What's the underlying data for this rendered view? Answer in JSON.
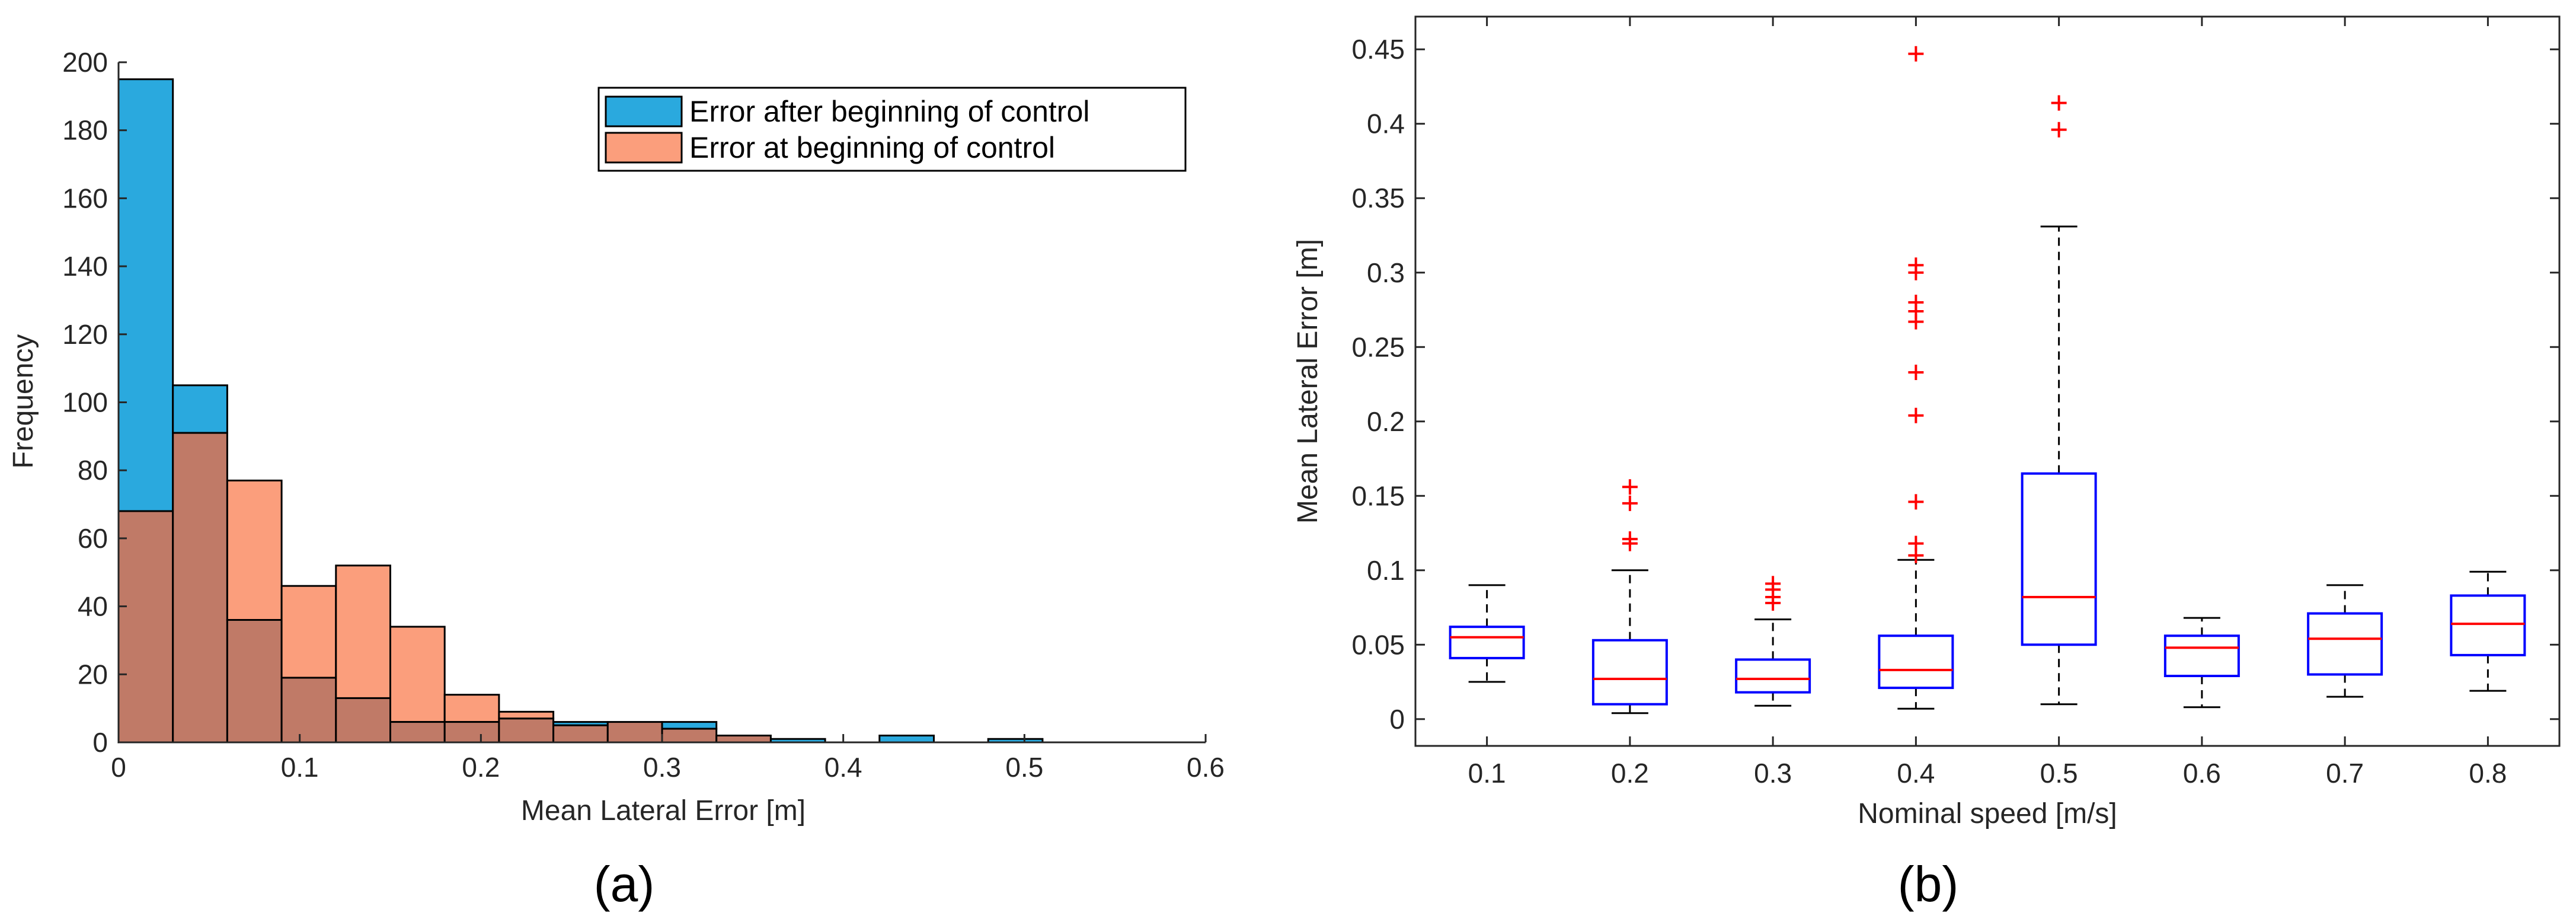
{
  "chart_data": [
    {
      "type": "histogram",
      "caption": "(a)",
      "xlabel": "Mean Lateral Error [m]",
      "ylabel": "Frequency",
      "xlim": [
        0,
        0.6
      ],
      "ylim": [
        0,
        200
      ],
      "xticks": [
        "0",
        "0.1",
        "0.2",
        "0.3",
        "0.4",
        "0.5",
        "0.6"
      ],
      "yticks": [
        "0",
        "20",
        "40",
        "60",
        "80",
        "100",
        "120",
        "140",
        "160",
        "180",
        "200"
      ],
      "bin_width": 0.03,
      "series": [
        {
          "name": "Error after beginning of control",
          "color": "#2aa9de",
          "bins": [
            [
              0,
              195
            ],
            [
              0.03,
              105
            ],
            [
              0.06,
              36
            ],
            [
              0.09,
              19
            ],
            [
              0.12,
              13
            ],
            [
              0.15,
              6
            ],
            [
              0.18,
              6
            ],
            [
              0.21,
              7
            ],
            [
              0.24,
              6
            ],
            [
              0.27,
              6
            ],
            [
              0.3,
              6
            ],
            [
              0.33,
              2
            ],
            [
              0.36,
              1
            ],
            [
              0.42,
              2
            ],
            [
              0.48,
              1
            ]
          ]
        },
        {
          "name": "Error at beginning of control",
          "color": "#fb9e7c",
          "bins": [
            [
              0,
              68
            ],
            [
              0.03,
              91
            ],
            [
              0.06,
              77
            ],
            [
              0.09,
              46
            ],
            [
              0.12,
              52
            ],
            [
              0.15,
              34
            ],
            [
              0.18,
              14
            ],
            [
              0.21,
              9
            ],
            [
              0.24,
              5
            ],
            [
              0.27,
              6
            ],
            [
              0.3,
              4
            ],
            [
              0.33,
              2
            ]
          ]
        }
      ],
      "overlap_color": "#c07a67",
      "legend_position": "top-right"
    },
    {
      "type": "boxplot",
      "caption": "(b)",
      "xlabel": "Nominal speed [m/s]",
      "ylabel": "Mean Lateral Error [m]",
      "ylim": [
        -0.018,
        0.472
      ],
      "yticks": [
        "0",
        "0.05",
        "0.1",
        "0.15",
        "0.2",
        "0.25",
        "0.3",
        "0.35",
        "0.4",
        "0.45"
      ],
      "categories": [
        "0.1",
        "0.2",
        "0.3",
        "0.4",
        "0.5",
        "0.6",
        "0.7",
        "0.8"
      ],
      "boxes": [
        {
          "whisker_low": 0.025,
          "q1": 0.041,
          "median": 0.055,
          "q3": 0.062,
          "whisker_high": 0.09,
          "outliers": []
        },
        {
          "whisker_low": 0.004,
          "q1": 0.01,
          "median": 0.027,
          "q3": 0.053,
          "whisker_high": 0.1,
          "outliers": [
            0.118,
            0.121,
            0.145,
            0.156
          ]
        },
        {
          "whisker_low": 0.009,
          "q1": 0.018,
          "median": 0.027,
          "q3": 0.04,
          "whisker_high": 0.067,
          "outliers": [
            0.078,
            0.082,
            0.087,
            0.091
          ]
        },
        {
          "whisker_low": 0.007,
          "q1": 0.021,
          "median": 0.033,
          "q3": 0.056,
          "whisker_high": 0.107,
          "outliers": [
            0.11,
            0.118,
            0.146,
            0.204,
            0.233,
            0.267,
            0.274,
            0.28,
            0.3,
            0.305,
            0.447
          ]
        },
        {
          "whisker_low": 0.01,
          "q1": 0.05,
          "median": 0.082,
          "q3": 0.165,
          "whisker_high": 0.331,
          "outliers": [
            0.396,
            0.414
          ]
        },
        {
          "whisker_low": 0.008,
          "q1": 0.029,
          "median": 0.048,
          "q3": 0.056,
          "whisker_high": 0.068,
          "outliers": []
        },
        {
          "whisker_low": 0.015,
          "q1": 0.03,
          "median": 0.054,
          "q3": 0.071,
          "whisker_high": 0.09,
          "outliers": []
        },
        {
          "whisker_low": 0.019,
          "q1": 0.043,
          "median": 0.064,
          "q3": 0.083,
          "whisker_high": 0.099,
          "outliers": []
        }
      ],
      "box_color": "#0000ff",
      "median_color": "#ff0000",
      "outlier_color": "#ff0000"
    }
  ]
}
